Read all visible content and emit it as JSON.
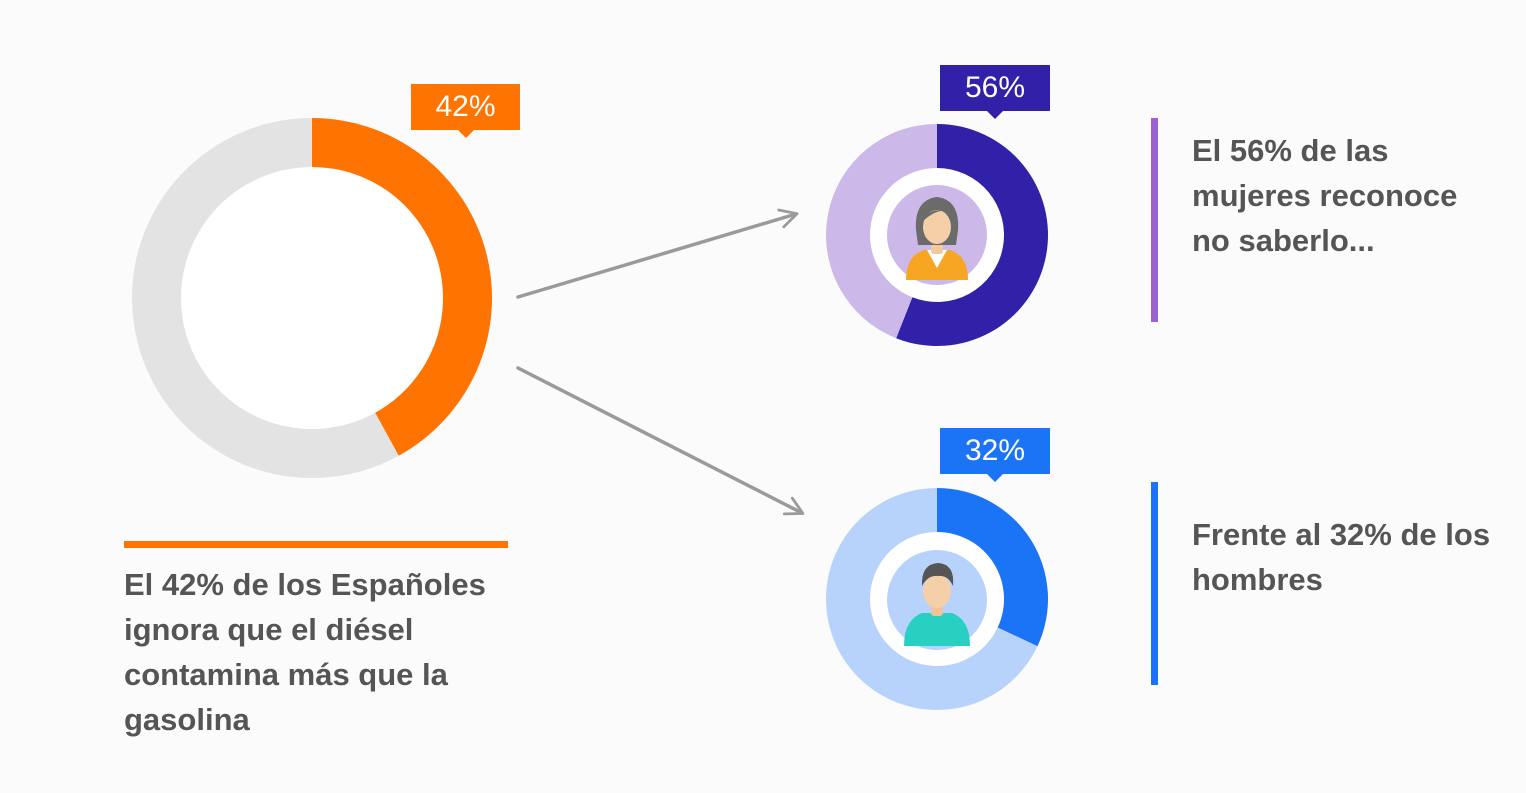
{
  "colors": {
    "main_accent": "#ff7300",
    "women_accent": "#3120a8",
    "women_rest": "#cdb8ea",
    "women_bar": "#9a62d0",
    "men_accent": "#1a74f5",
    "men_rest": "#b7d3fb",
    "neutral_ring": "#e3e3e3",
    "arrow": "#9a9a9a",
    "text": "#555555"
  },
  "icons": {
    "women": "woman-avatar-icon",
    "men": "man-avatar-icon"
  },
  "labels": {
    "main": "42%",
    "women": "56%",
    "men": "32%"
  },
  "captions": {
    "main": "El 42% de los Españoles ignora que el diésel contamina más que la gasolina",
    "women": "El 56% de las mujeres reconoce no saberlo...",
    "men": "Frente al 32% de los hombres"
  },
  "chart_data": [
    {
      "type": "pie",
      "title": "",
      "categories": [
        "",
        ""
      ],
      "values": [
        42,
        58
      ],
      "colors": [
        "#ff7300",
        "#e3e3e3"
      ],
      "data_labels": [
        "42%"
      ]
    },
    {
      "type": "pie",
      "title": "",
      "categories": [
        "",
        ""
      ],
      "values": [
        56,
        44
      ],
      "colors": [
        "#3120a8",
        "#cdb8ea"
      ],
      "data_labels": [
        "56%"
      ]
    },
    {
      "type": "pie",
      "title": "",
      "categories": [
        "",
        ""
      ],
      "values": [
        32,
        68
      ],
      "colors": [
        "#1a74f5",
        "#b7d3fb"
      ],
      "data_labels": [
        "32%"
      ]
    }
  ]
}
